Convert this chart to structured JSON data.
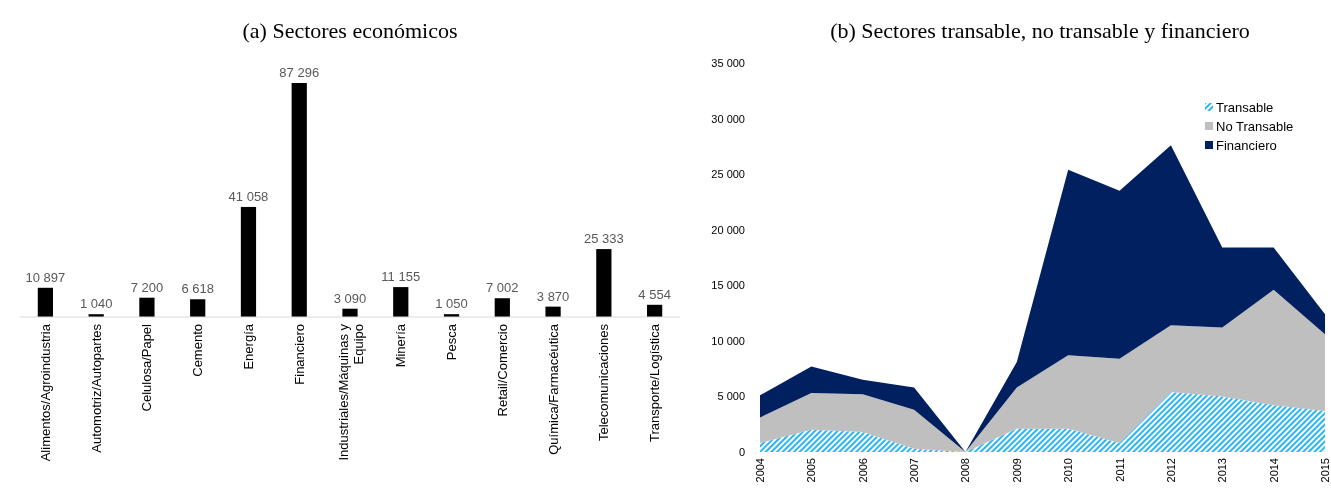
{
  "chart_data": [
    {
      "type": "bar",
      "title": "(a) Sectores económicos",
      "categories": [
        "Alimentos/Agroindustria",
        "Automotriz/Autopartes",
        "Celulosa/Papel",
        "Cemento",
        "Energía",
        "Financiero",
        "Industriales/Máquinas y Equipo",
        "Minería",
        "Pesca",
        "Retail/Comercio",
        "Química/Farmacéutica",
        "Telecomunicaciones",
        "Transporte/Logística"
      ],
      "values": [
        10897,
        1040,
        7200,
        6618,
        41058,
        87296,
        3090,
        11155,
        1050,
        7002,
        3870,
        25333,
        4554
      ],
      "color": "#000000",
      "value_labels": [
        "10 897",
        "1 040",
        "7 200",
        "6 618",
        "41 058",
        "87 296",
        "3 090",
        "11 155",
        "1 050",
        "7 002",
        "3 870",
        "25 333",
        "4 554"
      ]
    },
    {
      "type": "area",
      "title": "(b) Sectores transable, no transable y financiero",
      "categories": [
        "2004",
        "2005",
        "2006",
        "2007",
        "2008",
        "2009",
        "2010",
        "2011",
        "2012",
        "2013",
        "2014",
        "2015"
      ],
      "stacked": true,
      "ylim": [
        0,
        35000
      ],
      "yticks": [
        {
          "value": 0,
          "label": "0"
        },
        {
          "value": 5000,
          "label": "5 000"
        },
        {
          "value": 10000,
          "label": "10 000"
        },
        {
          "value": 15000,
          "label": "15 000"
        },
        {
          "value": 20000,
          "label": "20 000"
        },
        {
          "value": 25000,
          "label": "25 000"
        },
        {
          "value": 30000,
          "label": "30 000"
        },
        {
          "value": 35000,
          "label": "35 000"
        }
      ],
      "legend": "top right",
      "series": [
        {
          "name": "Transable",
          "color": "#29b6f6",
          "values": [
            800,
            2000,
            1800,
            300,
            0,
            2100,
            2100,
            800,
            5400,
            5000,
            4200,
            3700
          ]
        },
        {
          "name": "No Transable",
          "color": "#bfbfbf",
          "values": [
            2300,
            3300,
            3400,
            3500,
            0,
            3700,
            6600,
            7600,
            6000,
            6200,
            10400,
            6900
          ]
        },
        {
          "name": "Financiero",
          "color": "#002060",
          "values": [
            2000,
            2400,
            1300,
            2000,
            0,
            2300,
            16700,
            15100,
            16200,
            7200,
            3800,
            1800
          ]
        }
      ]
    }
  ]
}
